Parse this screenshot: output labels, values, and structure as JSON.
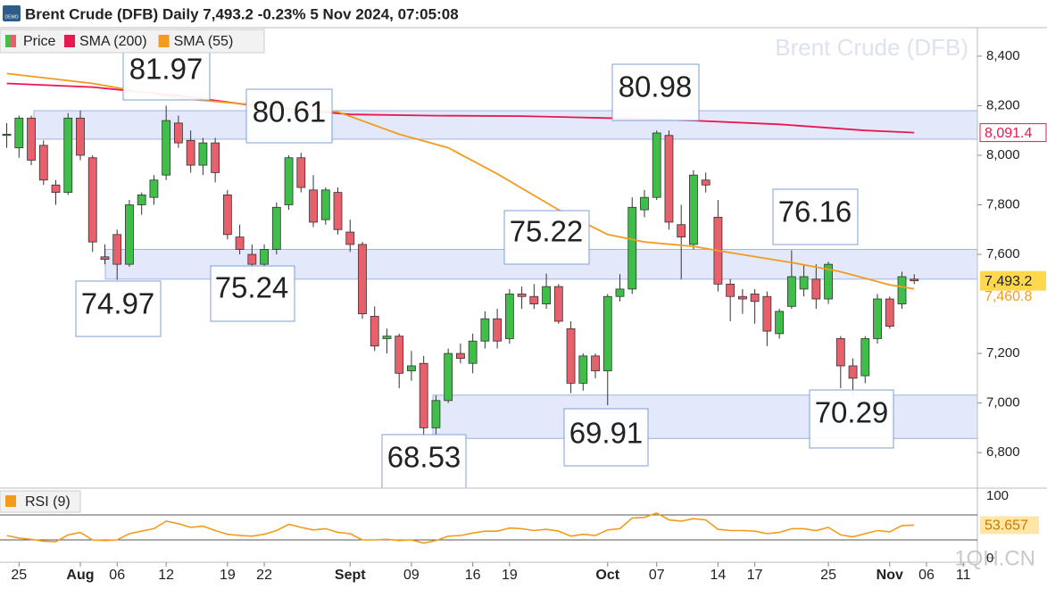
{
  "header": {
    "title": "Brent Crude (DFB) Daily 7,493.2 -0.23% 5 Nov 2024, 07:05:08",
    "watermark": "Brent Crude (DFB)",
    "logo": "1QH.CN",
    "badge": "DEMO"
  },
  "annotations": [
    "81.97",
    "80.61",
    "80.98",
    "75.22",
    "76.16",
    "74.97",
    "75.24",
    "68.53",
    "69.91",
    "70.29"
  ],
  "chart_data": [
    {
      "type": "candlestick",
      "name": "Price",
      "up_color": "#3fbf4a",
      "down_color": "#e8606c",
      "open": [
        8080,
        8030,
        8150,
        8040,
        7880,
        7850,
        8150,
        7990,
        7590,
        7680,
        7560,
        7800,
        7830,
        7920,
        8130,
        8060,
        7960,
        8050,
        7840,
        7670,
        7600,
        7560,
        7620,
        7800,
        7990,
        7860,
        7740,
        7850,
        7690,
        7640,
        7350,
        7260,
        7270,
        7130,
        7160,
        6900,
        7010,
        7200,
        7160,
        7250,
        7340,
        7260,
        7440,
        7430,
        7400,
        7470,
        7300,
        7080,
        7190,
        7130,
        7430,
        7460,
        7780,
        7830,
        8080,
        7720,
        7640,
        7900,
        7750,
        7480,
        7430,
        7440,
        7430,
        7280,
        7390,
        7460,
        7500,
        7420,
        7260,
        7150,
        7110,
        7260,
        7420,
        7400,
        7500
      ],
      "high": [
        8130,
        8160,
        8160,
        8060,
        7900,
        8170,
        8180,
        8000,
        7640,
        7700,
        7820,
        7850,
        7920,
        8200,
        8160,
        8100,
        8070,
        8070,
        7860,
        7720,
        7640,
        7640,
        7810,
        8000,
        8010,
        7920,
        7870,
        7870,
        7740,
        7650,
        7390,
        7300,
        7280,
        7210,
        7190,
        7030,
        7220,
        7240,
        7280,
        7370,
        7380,
        7460,
        7470,
        7480,
        7522,
        7480,
        7330,
        7200,
        7200,
        7440,
        7520,
        7830,
        7860,
        8100,
        8100,
        7800,
        7940,
        7930,
        7820,
        7500,
        7460,
        7460,
        7450,
        7380,
        7616,
        7560,
        7560,
        7570,
        7270,
        7180,
        7270,
        7440,
        7430,
        7530,
        7520
      ],
      "low": [
        8030,
        7990,
        7960,
        7880,
        7800,
        7840,
        7980,
        7610,
        7560,
        7497,
        7550,
        7760,
        7800,
        7900,
        8030,
        7930,
        7920,
        7890,
        7660,
        7600,
        7524,
        7540,
        7600,
        7780,
        7850,
        7710,
        7720,
        7680,
        7610,
        7340,
        7210,
        7200,
        7060,
        7090,
        6853,
        6870,
        7000,
        7160,
        7120,
        7220,
        7220,
        7240,
        7380,
        7380,
        7380,
        7320,
        7040,
        7050,
        7100,
        6991,
        7410,
        7440,
        7750,
        7820,
        7700,
        7500,
        7620,
        7850,
        7450,
        7330,
        7360,
        7320,
        7230,
        7260,
        7380,
        7430,
        7380,
        7400,
        7060,
        7029,
        7080,
        7240,
        7300,
        7380,
        7480
      ],
      "close": [
        8085,
        8150,
        7980,
        7900,
        7850,
        8150,
        8000,
        7650,
        7580,
        7560,
        7800,
        7840,
        7900,
        8140,
        8050,
        7960,
        8050,
        7930,
        7680,
        7620,
        7560,
        7620,
        7790,
        7990,
        7870,
        7730,
        7860,
        7700,
        7640,
        7360,
        7230,
        7270,
        7120,
        7150,
        6900,
        7010,
        7200,
        7180,
        7250,
        7340,
        7250,
        7440,
        7430,
        7400,
        7470,
        7330,
        7080,
        7190,
        7130,
        7430,
        7460,
        7790,
        7830,
        8090,
        7730,
        7670,
        7920,
        7880,
        7480,
        7430,
        7420,
        7410,
        7290,
        7370,
        7510,
        7510,
        7420,
        7560,
        7150,
        7100,
        7260,
        7420,
        7310,
        7510,
        7493.2
      ],
      "close_label": "7,493.2",
      "close_label_color": "#ffd84d",
      "series": [
        {
          "name": "SMA (200)",
          "color": "#e8174f",
          "x": [
            0,
            7,
            14,
            21,
            28,
            35,
            42,
            49,
            56,
            63,
            70,
            74
          ],
          "values": [
            8290,
            8275,
            8240,
            8195,
            8165,
            8160,
            8158,
            8150,
            8140,
            8125,
            8100,
            8091.4
          ],
          "value_label": "8,091.4"
        },
        {
          "name": "SMA (55)",
          "color": "#f39b1f",
          "x": [
            0,
            7,
            14,
            21,
            27,
            32,
            36,
            40,
            45,
            49,
            52,
            56,
            59,
            64,
            68,
            72,
            74
          ],
          "values": [
            8330,
            8290,
            8230,
            8200,
            8175,
            8085,
            8030,
            7925,
            7780,
            7680,
            7650,
            7632,
            7607,
            7567,
            7530,
            7477,
            7460.8
          ],
          "value_label": "7,460.8"
        }
      ],
      "zones": [
        {
          "from": 8065,
          "to": 8180
        },
        {
          "from": 7500,
          "to": 7620
        },
        {
          "from": 6857,
          "to": 7032
        }
      ],
      "zone_color": "#e3e9fb",
      "xlim": [
        -0.55,
        79.15
      ],
      "ylim": [
        6660,
        8515
      ],
      "yticks": [
        {
          "value": 8400,
          "label": "8,400"
        },
        {
          "value": 8200,
          "label": "8,200"
        },
        {
          "value": 8000,
          "label": "8,000"
        },
        {
          "value": 7800,
          "label": "7,800"
        },
        {
          "value": 7600,
          "label": "7,600"
        },
        {
          "value": 7200,
          "label": "7,200"
        },
        {
          "value": 7000,
          "label": "7,000"
        },
        {
          "value": 6800,
          "label": "6,800"
        }
      ],
      "xticks": [
        {
          "value": 1,
          "label": "25"
        },
        {
          "value": 6,
          "label": "Aug"
        },
        {
          "value": 9,
          "label": "06"
        },
        {
          "value": 13,
          "label": "12"
        },
        {
          "value": 18,
          "label": "19"
        },
        {
          "value": 21,
          "label": "22"
        },
        {
          "value": 28,
          "label": "Sept"
        },
        {
          "value": 33,
          "label": "09"
        },
        {
          "value": 38,
          "label": "16"
        },
        {
          "value": 41,
          "label": "19"
        },
        {
          "value": 49,
          "label": "Oct"
        },
        {
          "value": 53,
          "label": "07"
        },
        {
          "value": 58,
          "label": "14"
        },
        {
          "value": 61,
          "label": "17"
        },
        {
          "value": 67,
          "label": "25"
        },
        {
          "value": 72,
          "label": "Nov"
        },
        {
          "value": 75,
          "label": "06"
        },
        {
          "value": 78,
          "label": "11"
        }
      ]
    },
    {
      "type": "line",
      "name": "RSI (9)",
      "color": "#f39b1f",
      "values": [
        37,
        33,
        31,
        28,
        27,
        38,
        42,
        30,
        29,
        30,
        40,
        44,
        48,
        60,
        56,
        50,
        52,
        45,
        39,
        37,
        36,
        39,
        45,
        55,
        50,
        46,
        48,
        42,
        40,
        30,
        30,
        31,
        29,
        30,
        25,
        29,
        36,
        37,
        41,
        44,
        44,
        49,
        48,
        45,
        47,
        44,
        36,
        39,
        37,
        46,
        48,
        65,
        66,
        73,
        62,
        60,
        64,
        62,
        47,
        45,
        45,
        44,
        40,
        42,
        48,
        48,
        45,
        50,
        38,
        35,
        40,
        45,
        43,
        53,
        53.657
      ],
      "value_label": "53.657",
      "label_color": "#ffe6a6",
      "levels": [
        70,
        30
      ],
      "ylim": [
        -5.7,
        111.4
      ],
      "yticks": [
        100,
        0
      ]
    }
  ]
}
